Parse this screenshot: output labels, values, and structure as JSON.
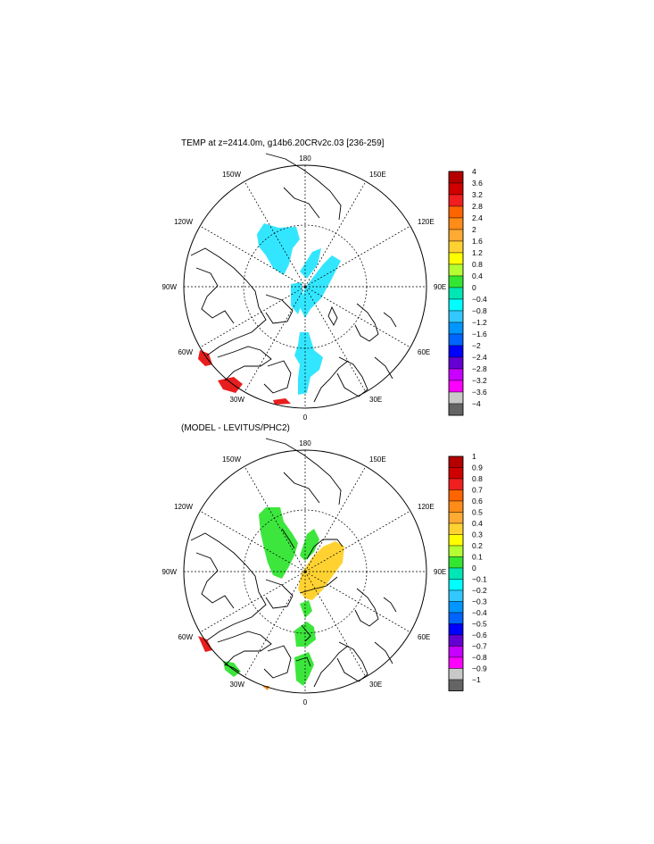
{
  "panel1": {
    "title": "TEMP at z=2414.0m, g14b6.20CRv2c.03 [236-259]",
    "lon_labels": {
      "top": "180",
      "bottom": "0",
      "left": "90W",
      "right": "90E",
      "nw1": "150W",
      "nw2": "120W",
      "sw1": "60W",
      "sw2": "30W",
      "ne1": "150E",
      "ne2": "120E",
      "se1": "60E",
      "se2": "30E"
    },
    "colorbar": {
      "labels": [
        "4",
        "3.6",
        "3.2",
        "2.8",
        "2.4",
        "2",
        "1.6",
        "1.2",
        "0.8",
        "0.4",
        "0",
        "−0.4",
        "−0.8",
        "−1.2",
        "−1.6",
        "−2",
        "−2.4",
        "−2.8",
        "−3.2",
        "−3.6",
        "−4"
      ],
      "colors": [
        "#b40000",
        "#d00000",
        "#f01e1e",
        "#ff6400",
        "#ff8c19",
        "#ffaa32",
        "#ffd232",
        "#ffff00",
        "#b4ff32",
        "#32e632",
        "#00e6b4",
        "#00ffff",
        "#32c8ff",
        "#0096ff",
        "#0064ff",
        "#0000ff",
        "#6400d2",
        "#c800ff",
        "#ff00ff",
        "#c8c8c8",
        "#646464"
      ]
    }
  },
  "panel2": {
    "title": "(MODEL - LEVITUS/PHC2)",
    "lon_labels": {
      "top": "180",
      "bottom": "0",
      "left": "90W",
      "right": "90E",
      "nw1": "150W",
      "nw2": "120W",
      "sw1": "60W",
      "sw2": "30W",
      "ne1": "150E",
      "ne2": "120E",
      "se1": "60E",
      "se2": "30E"
    },
    "colorbar": {
      "labels": [
        "1",
        "0.9",
        "0.8",
        "0.7",
        "0.6",
        "0.5",
        "0.4",
        "0.3",
        "0.2",
        "0.1",
        "0",
        "−0.1",
        "−0.2",
        "−0.3",
        "−0.4",
        "−0.5",
        "−0.6",
        "−0.7",
        "−0.8",
        "−0.9",
        "−1"
      ],
      "colors": [
        "#b40000",
        "#d00000",
        "#f01e1e",
        "#ff6400",
        "#ff8c19",
        "#ffaa32",
        "#ffd232",
        "#ffff00",
        "#b4ff32",
        "#32e632",
        "#00e6b4",
        "#00ffff",
        "#32c8ff",
        "#0096ff",
        "#0064ff",
        "#0000ff",
        "#6400d2",
        "#c800ff",
        "#ff00ff",
        "#c8c8c8",
        "#646464"
      ]
    }
  },
  "field_colors": {
    "cyan": "#33e6ff",
    "green": "#3ce63c",
    "yellow": "#ffd232",
    "red": "#e81e1e"
  }
}
